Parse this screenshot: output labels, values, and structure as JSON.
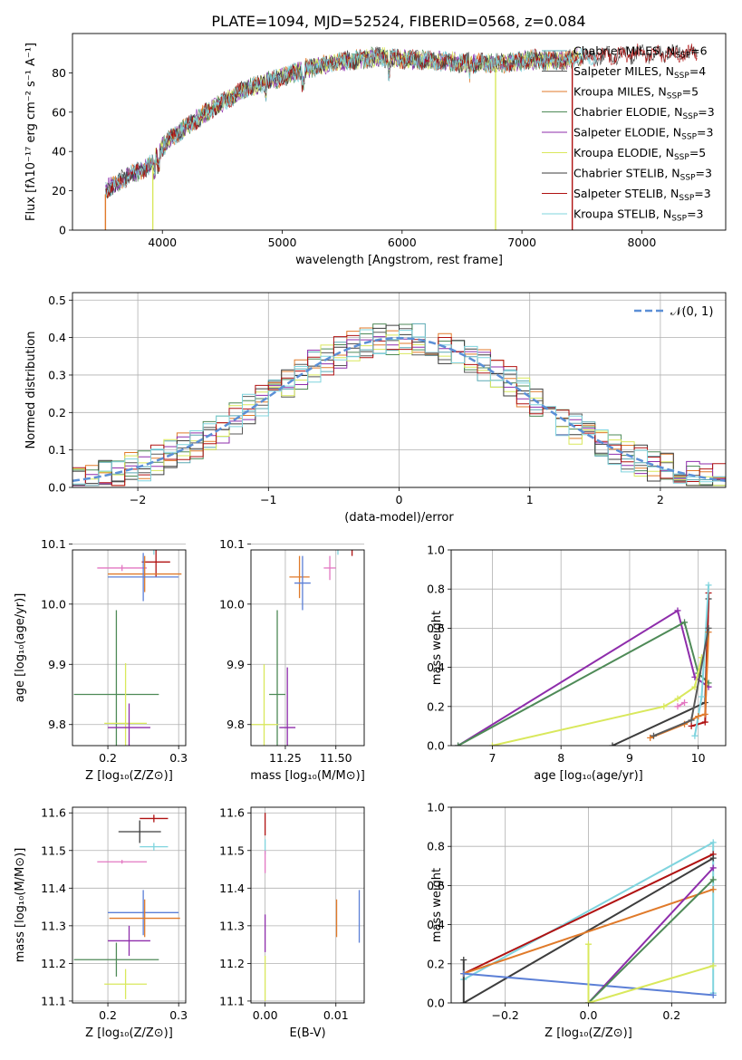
{
  "title": "PLATE=1094, MJD=52524, FIBERID=0568, z=0.084",
  "colors": {
    "chabrier_miles": "#5aa9b3",
    "salpeter_miles": "#595959",
    "kroupa_miles": "#e07a2a",
    "chabrier_elodie": "#4e8a57",
    "salpeter_elodie": "#8e2dab",
    "kroupa_elodie": "#d9e85c",
    "chabrier_stelib": "#3d3d3d",
    "salpeter_stelib": "#b01212",
    "kroupa_stelib": "#7fd4de",
    "pink": "#e377c2",
    "blue": "#5b7fd6",
    "gauss": "#5b8fd6"
  },
  "chart_data": [
    {
      "id": "spectrum",
      "type": "line",
      "xlabel": "wavelength [Angstrom, rest frame]",
      "ylabel": "Flux [fλ10⁻¹⁷ erg cm⁻² s⁻¹ A⁻¹]",
      "xlim": [
        3250,
        8700
      ],
      "ylim": [
        0,
        100
      ],
      "xticks": [
        "4000",
        "5000",
        "6000",
        "7000",
        "8000"
      ],
      "yticks": [
        "0",
        "20",
        "40",
        "60",
        "80"
      ],
      "continuum_x": [
        3520,
        3700,
        3900,
        3950,
        4050,
        4300,
        4500,
        4700,
        5000,
        5200,
        5500,
        5800,
        6000,
        6300,
        6600,
        6900,
        7100,
        7300,
        7500,
        7800,
        8000
      ],
      "continuum_y": [
        20,
        27,
        33,
        38,
        46,
        57,
        65,
        72,
        78,
        82,
        86,
        88,
        87,
        86,
        85,
        85,
        87,
        86,
        88,
        89,
        90
      ],
      "drop_lines_x": [
        3525,
        3920,
        6780,
        7420
      ],
      "legend": [
        {
          "label": "Chabrier MILES, N",
          "sub": "SSP",
          "n": "=6"
        },
        {
          "label": "Salpeter MILES, N",
          "sub": "SSP",
          "n": "=4"
        },
        {
          "label": "Kroupa MILES, N",
          "sub": "SSP",
          "n": "=5"
        },
        {
          "label": "Chabrier ELODIE, N",
          "sub": "SSP",
          "n": "=3"
        },
        {
          "label": "Salpeter ELODIE, N",
          "sub": "SSP",
          "n": "=3"
        },
        {
          "label": "Kroupa ELODIE, N",
          "sub": "SSP",
          "n": "=5"
        },
        {
          "label": "Chabrier STELIB, N",
          "sub": "SSP",
          "n": "=3"
        },
        {
          "label": "Salpeter STELIB, N",
          "sub": "SSP",
          "n": "=3"
        },
        {
          "label": "Kroupa STELIB, N",
          "sub": "SSP",
          "n": "=3"
        }
      ]
    },
    {
      "id": "residuals",
      "type": "histogram",
      "xlabel": "(data-model)/error",
      "ylabel": "Normed distribution",
      "xlim": [
        -2.5,
        2.5
      ],
      "ylim": [
        0,
        0.52
      ],
      "xticks": [
        "−2",
        "−1",
        "0",
        "1",
        "2"
      ],
      "yticks": [
        "0.0",
        "0.1",
        "0.2",
        "0.3",
        "0.4",
        "0.5"
      ],
      "legend": "𝒩(0, 1)",
      "bin_width": 0.1,
      "grid": true
    },
    {
      "id": "age_vs_Z",
      "type": "errorbar",
      "xlabel": "Z [log₁₀(Z/Z⊙)]",
      "ylabel": "age  [log₁₀(age/yr)]",
      "xlim": [
        0.15,
        0.31
      ],
      "ylim": [
        9.765,
        10.09
      ],
      "xticks": [
        "0.2",
        "0.3"
      ],
      "yticks": [
        "9.8",
        "9.9",
        "10.0",
        "10.1"
      ],
      "points": [
        {
          "series": "chabrier_stelib",
          "x": 0.245,
          "y": 10.117,
          "xerr": 0.022,
          "yerr": 0.02
        },
        {
          "series": "kroupa_stelib",
          "x": 0.265,
          "y": 10.092,
          "xerr": 0.02,
          "yerr": 0.01
        },
        {
          "series": "salpeter_stelib",
          "x": 0.268,
          "y": 10.07,
          "xerr": 0.02,
          "yerr": 0.025
        },
        {
          "series": "pink",
          "x": 0.22,
          "y": 10.06,
          "xerr": 0.035,
          "yerr": 0.005
        },
        {
          "series": "kroupa_miles",
          "x": 0.252,
          "y": 10.05,
          "xerr": 0.052,
          "yerr": 0.03
        },
        {
          "series": "blue",
          "x": 0.25,
          "y": 10.045,
          "xerr": 0.05,
          "yerr": 0.04
        },
        {
          "series": "chabrier_elodie",
          "x": 0.212,
          "y": 9.85,
          "xerr": 0.06,
          "yerr": 0.14
        },
        {
          "series": "kroupa_elodie",
          "x": 0.225,
          "y": 9.802,
          "xerr": 0.03,
          "yerr": 0.1
        },
        {
          "series": "salpeter_elodie",
          "x": 0.23,
          "y": 9.795,
          "xerr": 0.03,
          "yerr": 0.04
        }
      ]
    },
    {
      "id": "age_vs_mass",
      "type": "errorbar",
      "xlabel": "mass [log₁₀(M/M⊙)]",
      "ylabel": "",
      "xlim": [
        11.08,
        11.64
      ],
      "ylim": [
        9.765,
        10.09
      ],
      "xticks": [
        "11.25",
        "11.50"
      ],
      "yticks": [
        "9.8",
        "9.9",
        "10.0",
        "10.1"
      ],
      "points": [
        {
          "series": "chabrier_stelib",
          "x": 11.54,
          "y": 10.117,
          "xerr": 0.025,
          "yerr": 0.02
        },
        {
          "series": "kroupa_stelib",
          "x": 11.51,
          "y": 10.092,
          "xerr": 0.02,
          "yerr": 0.01
        },
        {
          "series": "salpeter_stelib",
          "x": 11.58,
          "y": 10.1,
          "xerr": 0.02,
          "yerr": 0.02
        },
        {
          "series": "pink",
          "x": 11.47,
          "y": 10.06,
          "xerr": 0.03,
          "yerr": 0.02
        },
        {
          "series": "kroupa_miles",
          "x": 11.32,
          "y": 10.045,
          "xerr": 0.05,
          "yerr": 0.035
        },
        {
          "series": "blue",
          "x": 11.335,
          "y": 10.035,
          "xerr": 0.04,
          "yerr": 0.045
        },
        {
          "series": "chabrier_elodie",
          "x": 11.21,
          "y": 9.85,
          "xerr": 0.04,
          "yerr": 0.14
        },
        {
          "series": "kroupa_elodie",
          "x": 11.145,
          "y": 9.8,
          "xerr": 0.07,
          "yerr": 0.1
        },
        {
          "series": "salpeter_elodie",
          "x": 11.26,
          "y": 9.795,
          "xerr": 0.04,
          "yerr": 0.1
        }
      ]
    },
    {
      "id": "weight_vs_age",
      "type": "line",
      "xlabel": "age  [log₁₀(age/yr)]",
      "ylabel": "mass weight",
      "xlim": [
        6.4,
        10.4
      ],
      "ylim": [
        0,
        1.0
      ],
      "xticks": [
        "7",
        "8",
        "9",
        "10"
      ],
      "yticks": [
        "0.0",
        "0.2",
        "0.4",
        "0.6",
        "0.8",
        "1.0"
      ],
      "series": [
        {
          "series": "salpeter_elodie",
          "x": [
            6.5,
            9.7,
            9.95,
            10.15
          ],
          "y": [
            0.0,
            0.69,
            0.35,
            0.3
          ]
        },
        {
          "series": "chabrier_elodie",
          "x": [
            6.5,
            9.8,
            10.0,
            10.15
          ],
          "y": [
            0.0,
            0.63,
            0.37,
            0.32
          ]
        },
        {
          "series": "kroupa_elodie",
          "x": [
            7.0,
            9.5,
            9.7,
            9.95,
            10.05
          ],
          "y": [
            0.0,
            0.2,
            0.24,
            0.3,
            0.45
          ]
        },
        {
          "series": "chabrier_stelib",
          "x": [
            8.75,
            10.1,
            10.15
          ],
          "y": [
            0.0,
            0.22,
            0.75
          ]
        },
        {
          "series": "salpeter_stelib",
          "x": [
            9.9,
            10.1,
            10.15
          ],
          "y": [
            0.1,
            0.12,
            0.78
          ]
        },
        {
          "series": "kroupa_stelib",
          "x": [
            9.95,
            10.05,
            10.15
          ],
          "y": [
            0.05,
            0.25,
            0.82
          ]
        },
        {
          "series": "kroupa_miles",
          "x": [
            9.3,
            9.8,
            10.0,
            10.1,
            10.15
          ],
          "y": [
            0.04,
            0.11,
            0.15,
            0.16,
            0.58
          ]
        },
        {
          "series": "salpeter_miles",
          "x": [
            9.35,
            9.9,
            10.15
          ],
          "y": [
            0.05,
            0.13,
            0.6
          ]
        },
        {
          "series": "pink",
          "x": [
            9.7,
            9.8
          ],
          "y": [
            0.2,
            0.22
          ]
        }
      ]
    },
    {
      "id": "mass_vs_Z",
      "type": "errorbar",
      "xlabel": "Z [log₁₀(Z/Z⊙)]",
      "ylabel": "mass [log₁₀(M/M⊙)]",
      "xlim": [
        0.15,
        0.31
      ],
      "ylim": [
        11.095,
        11.615
      ],
      "xticks": [
        "0.2",
        "0.3"
      ],
      "yticks": [
        "11.1",
        "11.2",
        "11.3",
        "11.4",
        "11.5",
        "11.6"
      ],
      "points": [
        {
          "series": "salpeter_stelib",
          "x": 0.265,
          "y": 11.585,
          "xerr": 0.02,
          "yerr": 0.01
        },
        {
          "series": "chabrier_stelib",
          "x": 0.245,
          "y": 11.55,
          "xerr": 0.03,
          "yerr": 0.03
        },
        {
          "series": "kroupa_stelib",
          "x": 0.265,
          "y": 11.51,
          "xerr": 0.02,
          "yerr": 0.01
        },
        {
          "series": "pink",
          "x": 0.22,
          "y": 11.47,
          "xerr": 0.035,
          "yerr": 0.005
        },
        {
          "series": "blue",
          "x": 0.25,
          "y": 11.335,
          "xerr": 0.05,
          "yerr": 0.06
        },
        {
          "series": "kroupa_miles",
          "x": 0.252,
          "y": 11.32,
          "xerr": 0.05,
          "yerr": 0.05
        },
        {
          "series": "salpeter_elodie",
          "x": 0.23,
          "y": 11.26,
          "xerr": 0.03,
          "yerr": 0.04
        },
        {
          "series": "chabrier_elodie",
          "x": 0.212,
          "y": 11.21,
          "xerr": 0.06,
          "yerr": 0.045
        },
        {
          "series": "kroupa_elodie",
          "x": 0.225,
          "y": 11.145,
          "xerr": 0.03,
          "yerr": 0.04
        }
      ]
    },
    {
      "id": "mass_vs_ebv",
      "type": "errorbar",
      "xlabel": "E(B-V)",
      "ylabel": "",
      "xlim": [
        -0.002,
        0.014
      ],
      "ylim": [
        11.095,
        11.615
      ],
      "xticks": [
        "0.00",
        "0.01"
      ],
      "yticks": [
        "11.1",
        "11.2",
        "11.3",
        "11.4",
        "11.5",
        "11.6"
      ],
      "points": [
        {
          "series": "salpeter_stelib",
          "x": 0.0,
          "y": 11.57,
          "xerr": 0.0,
          "yerr": 0.03
        },
        {
          "series": "kroupa_stelib",
          "x": 0.0,
          "y": 11.51,
          "xerr": 0.0,
          "yerr": 0.02
        },
        {
          "series": "pink",
          "x": 0.0,
          "y": 11.47,
          "xerr": 0.0,
          "yerr": 0.03
        },
        {
          "series": "blue",
          "x": 0.0133,
          "y": 11.325,
          "xerr": 0.0,
          "yerr": 0.07
        },
        {
          "series": "kroupa_miles",
          "x": 0.0101,
          "y": 11.32,
          "xerr": 0.0,
          "yerr": 0.05
        },
        {
          "series": "salpeter_elodie",
          "x": 0.0,
          "y": 11.28,
          "xerr": 0.0,
          "yerr": 0.05
        },
        {
          "series": "kroupa_elodie",
          "x": 0.0,
          "y": 11.16,
          "xerr": 0.0,
          "yerr": 0.06
        }
      ]
    },
    {
      "id": "weight_vs_Z",
      "type": "line",
      "xlabel": "Z [log₁₀(Z/Z⊙)]",
      "ylabel": "mass weight",
      "xlim": [
        -0.33,
        0.33
      ],
      "ylim": [
        0,
        1.0
      ],
      "xticks": [
        "−0.2",
        "0.0",
        "0.2"
      ],
      "yticks": [
        "0.0",
        "0.2",
        "0.4",
        "0.6",
        "0.8",
        "1.0"
      ],
      "series": [
        {
          "series": "kroupa_stelib",
          "x": [
            -0.3,
            0.3,
            0.3
          ],
          "y": [
            0.12,
            0.82,
            0.05
          ]
        },
        {
          "series": "salpeter_stelib",
          "x": [
            -0.3,
            0.3
          ],
          "y": [
            0.15,
            0.76
          ]
        },
        {
          "series": "chabrier_stelib",
          "x": [
            -0.3,
            -0.3,
            0.3
          ],
          "y": [
            0.22,
            0.0,
            0.74
          ]
        },
        {
          "series": "kroupa_miles",
          "x": [
            -0.3,
            0.3
          ],
          "y": [
            0.15,
            0.58
          ]
        },
        {
          "series": "blue",
          "x": [
            -0.3,
            0.3
          ],
          "y": [
            0.15,
            0.04
          ]
        },
        {
          "series": "salpeter_elodie",
          "x": [
            0.0,
            0.3
          ],
          "y": [
            0.0,
            0.69
          ]
        },
        {
          "series": "chabrier_elodie",
          "x": [
            0.0,
            0.3
          ],
          "y": [
            0.0,
            0.63
          ]
        },
        {
          "series": "kroupa_elodie",
          "x": [
            0.0,
            0.0,
            0.3
          ],
          "y": [
            0.3,
            0.0,
            0.19
          ]
        }
      ]
    }
  ]
}
